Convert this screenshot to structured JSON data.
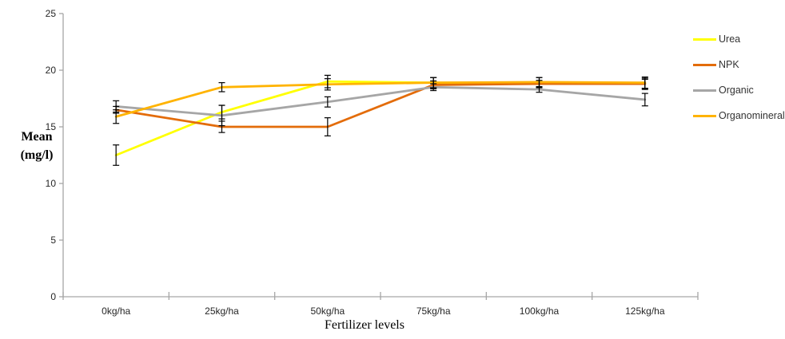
{
  "chart_data": {
    "type": "line",
    "title": "",
    "xlabel": "Fertilizer levels",
    "ylabel": "Mean (mg/l)",
    "ylabel_lines": [
      "Mean",
      "(mg/l)"
    ],
    "categories": [
      "0kg/ha",
      "25kg/ha",
      "50kg/ha",
      "75kg/ha",
      "100kg/ha",
      "125kg/ha"
    ],
    "ylim": [
      0,
      25
    ],
    "yticks": [
      0,
      5,
      10,
      15,
      20,
      25
    ],
    "grid": "off",
    "legend_position": "right",
    "error_bars": true,
    "series": [
      {
        "name": "Urea",
        "color": "#FFFF00",
        "values": [
          12.5,
          16.3,
          19.0,
          18.9,
          18.9,
          18.8
        ],
        "errors": [
          0.9,
          0.6,
          0.55,
          0.45,
          0.45,
          0.5
        ]
      },
      {
        "name": "NPK",
        "color": "#E36C0A",
        "values": [
          16.5,
          15.0,
          15.0,
          18.7,
          18.8,
          18.8
        ],
        "errors": [
          0.3,
          0.5,
          0.8,
          0.35,
          0.3,
          0.4
        ]
      },
      {
        "name": "Organic",
        "color": "#A6A6A6",
        "values": [
          16.8,
          16.0,
          17.2,
          18.5,
          18.3,
          17.4
        ],
        "errors": [
          0.5,
          0.9,
          0.45,
          0.3,
          0.25,
          0.55
        ]
      },
      {
        "name": "Organomineral",
        "color": "#FFB300",
        "values": [
          15.9,
          18.5,
          18.75,
          18.9,
          18.95,
          18.9
        ],
        "errors": [
          0.6,
          0.4,
          0.5,
          0.45,
          0.4,
          0.5
        ]
      }
    ]
  },
  "colors": {
    "axis": "#A6A6A6",
    "tick_label": "#262626",
    "error_bar": "#000000",
    "background": "#FFFFFF"
  }
}
